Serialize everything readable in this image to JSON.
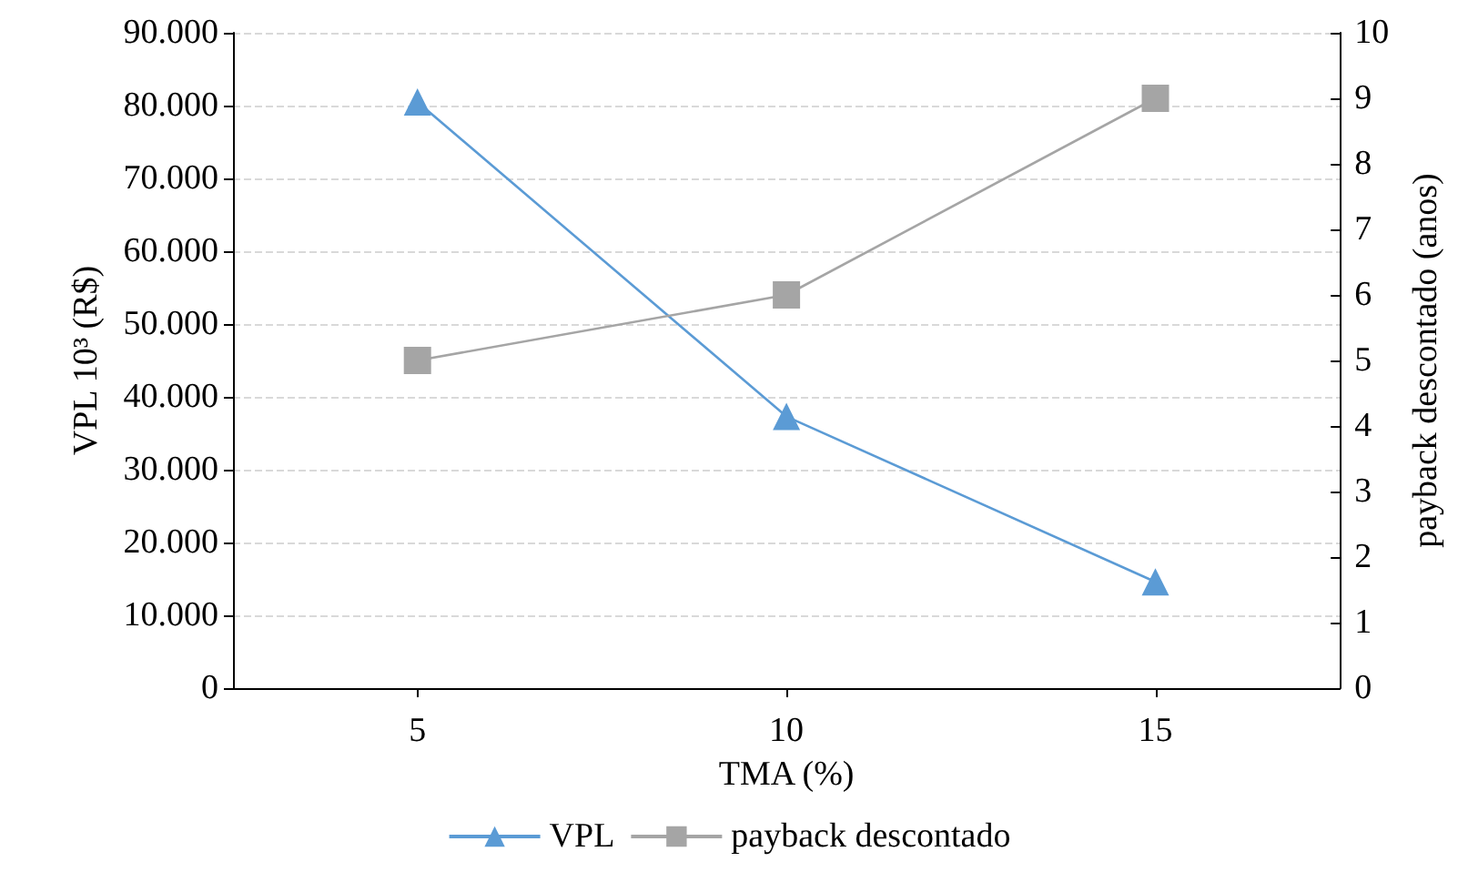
{
  "chart_data": {
    "type": "line",
    "xlabel": "TMA (%)",
    "ylabel": "VPL 10³ (R$)",
    "y2label": "payback descontado (anos)",
    "categories": [
      "5",
      "10",
      "15"
    ],
    "series": [
      {
        "name": "VPL",
        "color": "#5b9bd5",
        "marker": "triangle",
        "values": [
          80500,
          37300,
          14600
        ]
      },
      {
        "name": "payback descontado",
        "color": "#a5a5a5",
        "marker": "square",
        "axis": "y2",
        "values": [
          5,
          6,
          9
        ]
      }
    ],
    "ylim": [
      0,
      90000
    ],
    "yticks": [
      {
        "value": 0,
        "label": "0"
      },
      {
        "value": 10000,
        "label": "10.000"
      },
      {
        "value": 20000,
        "label": "20.000"
      },
      {
        "value": 30000,
        "label": "30.000"
      },
      {
        "value": 40000,
        "label": "40.000"
      },
      {
        "value": 50000,
        "label": "50.000"
      },
      {
        "value": 60000,
        "label": "60.000"
      },
      {
        "value": 70000,
        "label": "70.000"
      },
      {
        "value": 80000,
        "label": "80.000"
      },
      {
        "value": 90000,
        "label": "90.000"
      }
    ],
    "y2lim": [
      0,
      10
    ],
    "y2ticks": [
      0,
      1,
      2,
      3,
      4,
      5,
      6,
      7,
      8,
      9,
      10
    ],
    "grid": "y",
    "legend": "bottom",
    "line_style": "solid"
  }
}
